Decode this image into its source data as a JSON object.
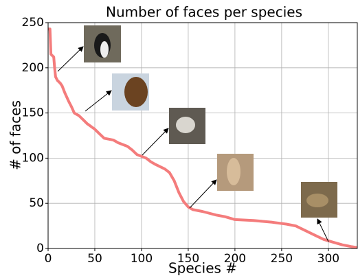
{
  "chart_data": {
    "type": "line",
    "title": "Number of faces per species",
    "x_label": "Species #",
    "y_label": "# of faces",
    "x": [
      0,
      2,
      3,
      5,
      6,
      7,
      8,
      10,
      13,
      15,
      18,
      22,
      25,
      28,
      33,
      38,
      42,
      50,
      55,
      60,
      70,
      75,
      85,
      90,
      95,
      105,
      110,
      115,
      125,
      130,
      135,
      140,
      145,
      150,
      155,
      165,
      180,
      190,
      200,
      220,
      240,
      255,
      265,
      275,
      285,
      295,
      305,
      315,
      325,
      331
    ],
    "values": [
      243,
      243,
      215,
      213,
      212,
      200,
      190,
      186,
      183,
      180,
      172,
      163,
      157,
      150,
      147,
      142,
      138,
      132,
      127,
      122,
      120,
      117,
      113,
      109,
      104,
      100,
      96,
      93,
      88,
      84,
      75,
      62,
      52,
      46,
      43,
      41,
      37,
      35,
      32,
      31,
      29,
      27,
      25,
      20,
      15,
      10,
      7,
      4,
      2,
      1
    ],
    "color": "#f47c7c",
    "xlim": [
      0,
      331
    ],
    "ylim": [
      0,
      250
    ],
    "xticks": [
      0,
      50,
      100,
      150,
      200,
      250,
      300
    ],
    "yticks": [
      0,
      50,
      100,
      150,
      200,
      250
    ],
    "grid": true
  }
}
